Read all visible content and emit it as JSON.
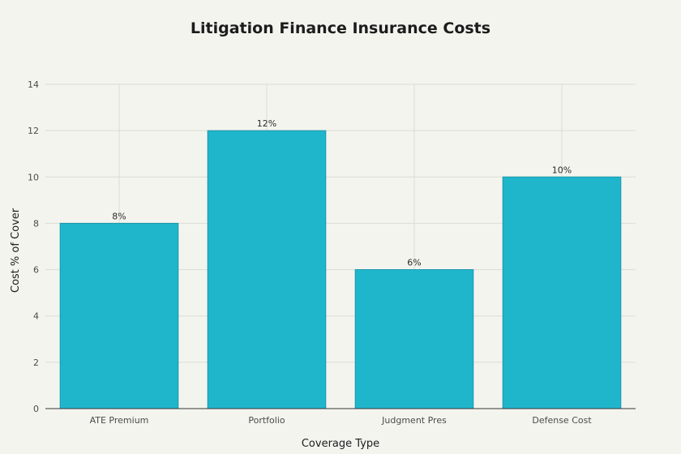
{
  "chart_data": {
    "type": "bar",
    "title": "Litigation Finance Insurance Costs",
    "xlabel": "Coverage Type",
    "ylabel": "Cost % of Cover",
    "categories": [
      "ATE Premium",
      "Portfolio",
      "Judgment Pres",
      "Defense Cost"
    ],
    "values": [
      8,
      12,
      6,
      10
    ],
    "data_labels": [
      "8%",
      "12%",
      "6%",
      "10%"
    ],
    "ylim": [
      0,
      14
    ],
    "yticks": [
      0,
      2,
      4,
      6,
      8,
      10,
      12,
      14
    ],
    "grid": true,
    "bar_color": "#1fb6cc",
    "bar_edge_color": "#1a97ab"
  }
}
